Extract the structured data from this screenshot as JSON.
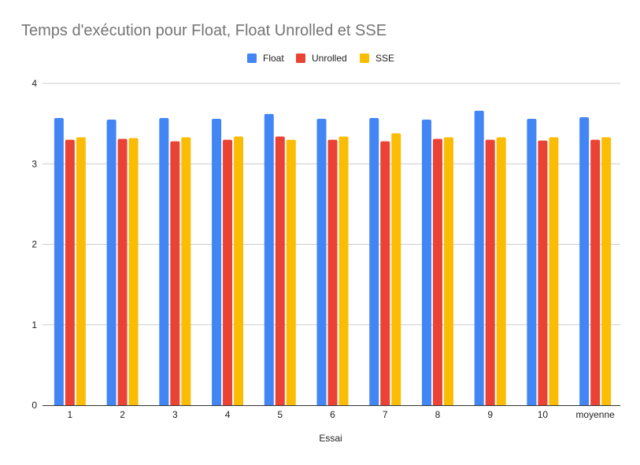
{
  "chart_data": {
    "type": "bar",
    "title": "Temps d'exécution pour Float, Float Unrolled et SSE",
    "xlabel": "Essai",
    "ylabel": "",
    "ylim": [
      0,
      4
    ],
    "yticks": [
      0,
      1,
      2,
      3,
      4
    ],
    "grid": true,
    "legend_position": "top",
    "categories": [
      "1",
      "2",
      "3",
      "4",
      "5",
      "6",
      "7",
      "8",
      "9",
      "10",
      "moyenne"
    ],
    "series": [
      {
        "name": "Float",
        "color": "#4285F4",
        "values": [
          3.57,
          3.55,
          3.57,
          3.56,
          3.62,
          3.56,
          3.57,
          3.55,
          3.66,
          3.56,
          3.58
        ]
      },
      {
        "name": "Unrolled",
        "color": "#EA4335",
        "values": [
          3.3,
          3.31,
          3.28,
          3.3,
          3.34,
          3.3,
          3.28,
          3.31,
          3.3,
          3.29,
          3.3
        ]
      },
      {
        "name": "SSE",
        "color": "#FBBC04",
        "values": [
          3.33,
          3.32,
          3.33,
          3.34,
          3.3,
          3.34,
          3.38,
          3.33,
          3.33,
          3.33,
          3.33
        ]
      }
    ]
  }
}
